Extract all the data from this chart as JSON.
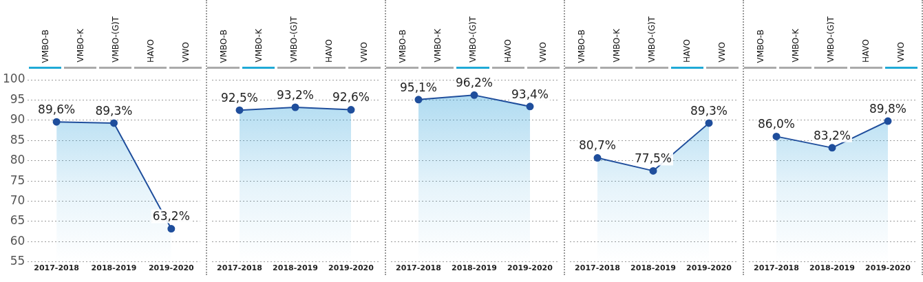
{
  "chart_data": [
    {
      "type": "area",
      "annotations": [
        "VMBO-B",
        "VMBO-K",
        "VMBO-(G)T",
        "HAVO",
        "VWO"
      ],
      "categories": [
        "2017-2018",
        "2018-2019",
        "2019-2020"
      ],
      "series": [
        {
          "color": "#1f4e9c",
          "values": [
            89.6,
            89.3,
            63.2
          ],
          "value_labels": [
            "89,6%",
            "89,3%",
            "63,2%"
          ]
        }
      ],
      "ylim": [
        55,
        100
      ],
      "yticks": [
        55,
        60,
        65,
        70,
        75,
        80,
        85,
        90,
        95,
        100
      ],
      "grid": "y",
      "marker": "circle"
    },
    {
      "type": "area",
      "annotations": [
        "VMBO-B",
        "VMBO-K",
        "VMBO-(G)T",
        "HAVO",
        "VWO"
      ],
      "categories": [
        "2017-2018",
        "2018-2019",
        "2019-2020"
      ],
      "series": [
        {
          "color": "#1f4e9c",
          "values": [
            92.5,
            93.2,
            92.6
          ],
          "value_labels": [
            "92,5%",
            "93,2%",
            "92,6%"
          ]
        }
      ],
      "ylim": [
        55,
        100
      ],
      "yticks": [
        55,
        60,
        65,
        70,
        75,
        80,
        85,
        90,
        95,
        100
      ],
      "grid": "y",
      "marker": "circle",
      "tick_labels": "x"
    },
    {
      "type": "area",
      "annotations": [
        "VMBO-B",
        "VMBO-K",
        "VMBO-(G)T",
        "HAVO",
        "VWO"
      ],
      "categories": [
        "2017-2018",
        "2018-2019",
        "2019-2020"
      ],
      "series": [
        {
          "color": "#1f4e9c",
          "values": [
            95.1,
            96.2,
            93.4
          ],
          "value_labels": [
            "95,1%",
            "96,2%",
            "93,4%"
          ]
        }
      ],
      "ylim": [
        55,
        100
      ],
      "yticks": [
        55,
        60,
        65,
        70,
        75,
        80,
        85,
        90,
        95,
        100
      ],
      "grid": "y",
      "marker": "circle",
      "tick_labels": "x"
    },
    {
      "type": "area",
      "annotations": [
        "VMBO-B",
        "VMBO-K",
        "VMBO-(G)T",
        "HAVO",
        "VWO"
      ],
      "categories": [
        "2017-2018",
        "2018-2019",
        "2019-2020"
      ],
      "series": [
        {
          "color": "#1f4e9c",
          "values": [
            80.7,
            77.5,
            89.3
          ],
          "value_labels": [
            "80,7%",
            "77,5%",
            "89,3%"
          ]
        }
      ],
      "ylim": [
        55,
        100
      ],
      "yticks": [
        55,
        60,
        65,
        70,
        75,
        80,
        85,
        90,
        95,
        100
      ],
      "grid": "y",
      "marker": "circle",
      "tick_labels": "x"
    },
    {
      "type": "area",
      "annotations": [
        "VMBO-B",
        "VMBO-K",
        "VMBO-(G)T",
        "HAVO",
        "VWO"
      ],
      "categories": [
        "2017-2018",
        "2018-2019",
        "2019-2020"
      ],
      "series": [
        {
          "color": "#1f4e9c",
          "values": [
            86.0,
            83.2,
            89.8
          ],
          "value_labels": [
            "86,0%",
            "83,2%",
            "89,8%"
          ]
        }
      ],
      "ylim": [
        55,
        100
      ],
      "yticks": [
        55,
        60,
        65,
        70,
        75,
        80,
        85,
        90,
        95,
        100
      ],
      "grid": "y",
      "marker": "circle",
      "tick_labels": "x"
    }
  ]
}
